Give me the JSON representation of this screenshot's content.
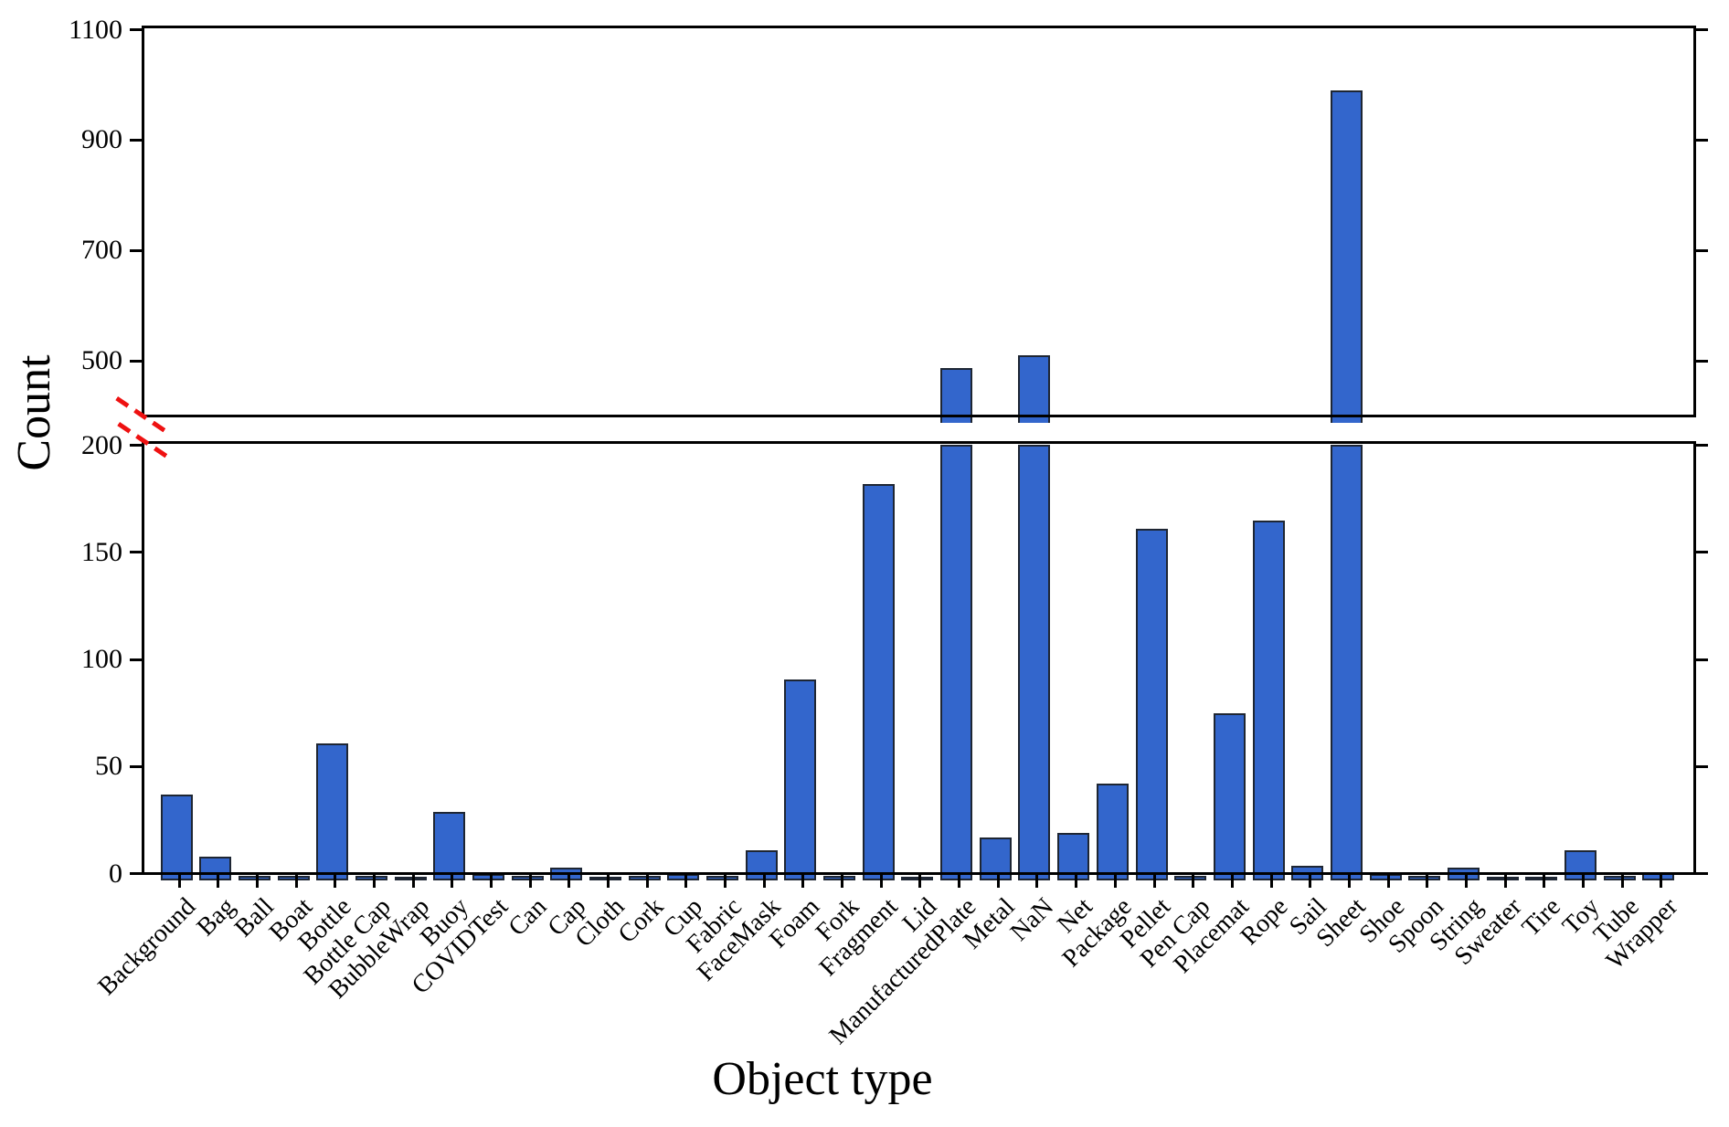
{
  "chart_data": {
    "type": "bar",
    "title": "",
    "xlabel": "Object type",
    "ylabel": "Count",
    "legend": null,
    "grid": false,
    "bar_color": "#3366cc",
    "bar_edge_color": "#1e2633",
    "spine_color": "#000000",
    "break_marker_color": "#ee1111",
    "axis_break": {
      "lower_ylim": [
        0,
        200
      ],
      "upper_ylim": [
        400,
        1100
      ],
      "lower_ticks": [
        0,
        50,
        100,
        150,
        200
      ],
      "upper_ticks": [
        500,
        700,
        900,
        1100
      ]
    },
    "categories": [
      "Background",
      "Bag",
      "Ball",
      "Boat",
      "Bottle",
      "Bottle Cap",
      "BubbleWrap",
      "Buoy",
      "COVIDTest",
      "Can",
      "Cap",
      "Cloth",
      "Cork",
      "Cup",
      "Fabric",
      "FaceMask",
      "Foam",
      "Fork",
      "Fragment",
      "Lid",
      "ManufacturedPlate",
      "Metal",
      "NaN",
      "Net",
      "Package",
      "Pellet",
      "Pen Cap",
      "Placemat",
      "Rope",
      "Sail",
      "Sheet",
      "Shoe",
      "Spoon",
      "String",
      "Sweater",
      "Tire",
      "Toy",
      "Tube",
      "Wrapper"
    ],
    "values": [
      40,
      11,
      2,
      2,
      64,
      2,
      1,
      32,
      3,
      2,
      6,
      1,
      2,
      3,
      2,
      14,
      94,
      2,
      185,
      1,
      500,
      20,
      522,
      22,
      45,
      164,
      2,
      78,
      168,
      7,
      1003,
      3,
      2,
      6,
      1,
      1,
      14,
      2,
      4
    ]
  }
}
